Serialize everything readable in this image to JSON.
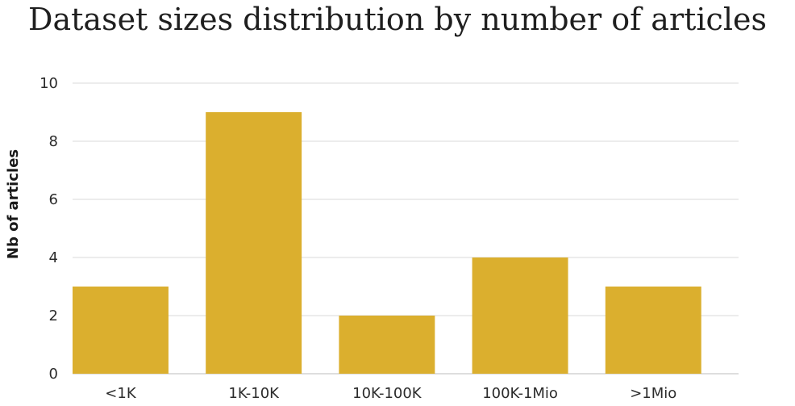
{
  "chart_data": {
    "type": "bar",
    "title": "Dataset sizes distribution by number of articles",
    "xlabel": "",
    "ylabel": "Nb of articles",
    "categories": [
      "<1K",
      "1K-10K",
      "10K-100K",
      "100K-1Mio",
      ">1Mio"
    ],
    "values": [
      3,
      9,
      2,
      4,
      3
    ],
    "ylim": [
      0,
      10
    ],
    "yticks": [
      "0",
      "2",
      "4",
      "6",
      "8",
      "10"
    ],
    "grid": true,
    "legend": "none",
    "bar_color": "#dbaf2e",
    "grid_color": "#d9d9d9"
  }
}
